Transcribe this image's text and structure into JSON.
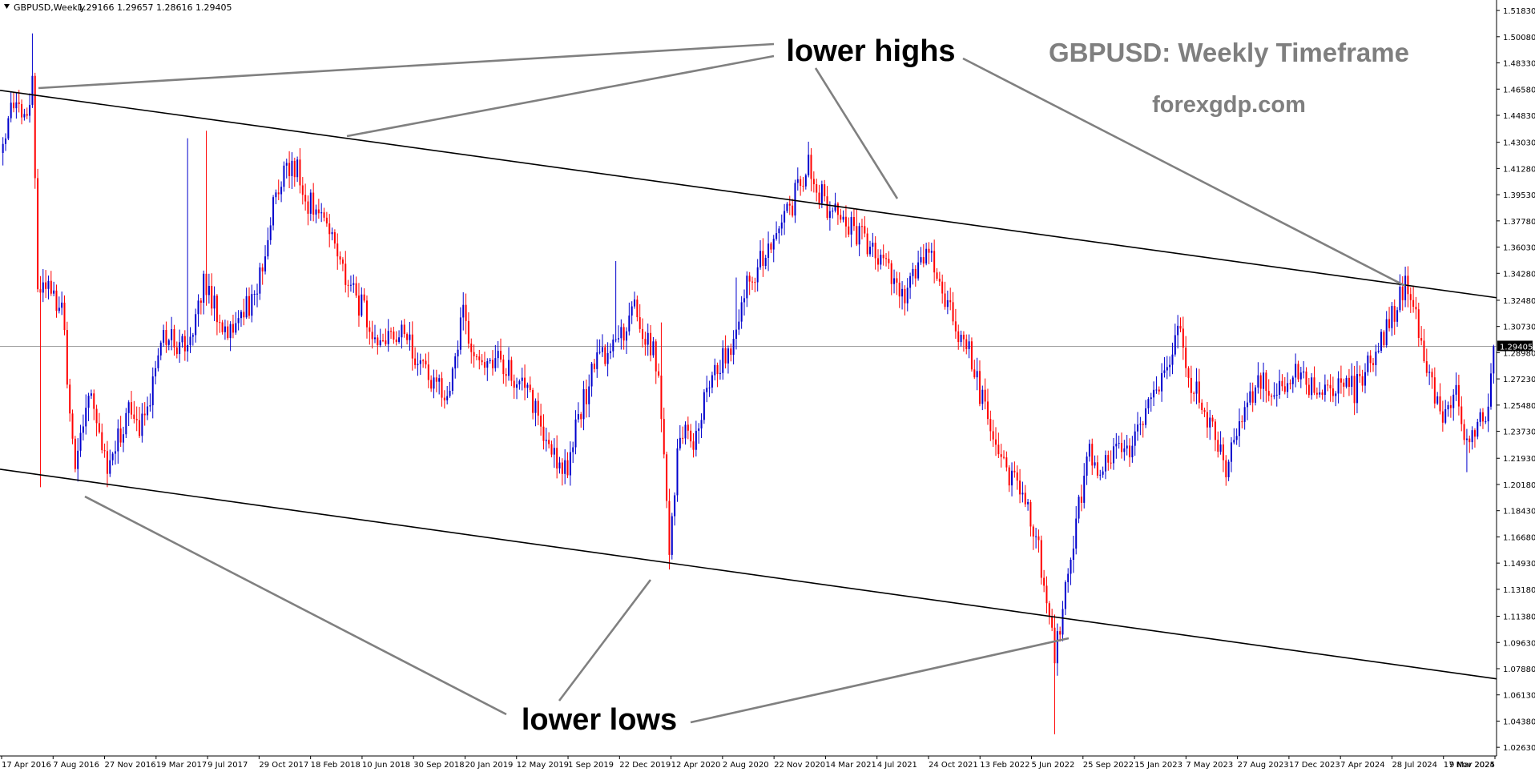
{
  "header": {
    "symbol": "GBPUSD,Weekly",
    "ohlc": "1.29166 1.29657 1.28616 1.29405"
  },
  "watermark": {
    "title": "GBPUSD: Weekly Timeframe",
    "site": "forexgdp.com",
    "color": "#7f7f7f"
  },
  "annotations": {
    "highs_label": "lower highs",
    "lows_label": "lower lows",
    "pointer_color": "#808080"
  },
  "colors": {
    "bull": "#0000cd",
    "bear": "#ff0000",
    "trendline": "#000000",
    "current_line": "#a0a0a0",
    "axis": "#000000"
  },
  "chart_data": {
    "type": "candlestick",
    "symbol": "GBPUSD",
    "timeframe": "Weekly",
    "current_price": "1.29405",
    "y_ticks": [
      "1.51830",
      "1.50080",
      "1.48330",
      "1.46580",
      "1.44830",
      "1.43030",
      "1.41280",
      "1.39530",
      "1.37780",
      "1.36030",
      "1.34280",
      "1.32480",
      "1.30730",
      "1.28980",
      "1.27230",
      "1.25480",
      "1.23730",
      "1.21930",
      "1.20180",
      "1.18430",
      "1.16680",
      "1.14930",
      "1.13180",
      "1.11380",
      "1.09630",
      "1.07880",
      "1.06130",
      "1.04380",
      "1.02630"
    ],
    "ylim": [
      1.0205,
      1.5253
    ],
    "x_ticks": [
      "17 Apr 2016",
      "7 Aug 2016",
      "27 Nov 2016",
      "19 Mar 2017",
      "9 Jul 2017",
      "29 Oct 2017",
      "18 Feb 2018",
      "10 Jun 2018",
      "30 Sep 2018",
      "20 Jan 2019",
      "12 May 2019",
      "1 Sep 2019",
      "22 Dec 2019",
      "12 Apr 2020",
      "2 Aug 2020",
      "22 Nov 2020",
      "14 Mar 2021",
      "4 Jul 2021",
      "24 Oct 2021",
      "13 Feb 2022",
      "5 Jun 2022",
      "25 Sep 2022",
      "15 Jan 2023",
      "7 May 2023",
      "27 Aug 2023",
      "17 Dec 2023",
      "7 Apr 2024",
      "28 Jul 2024",
      "17 Nov 2024",
      "9 Mar 2025"
    ],
    "anchors": [
      [
        0,
        1.43
      ],
      [
        3,
        1.465
      ],
      [
        8,
        1.445
      ],
      [
        11,
        1.472
      ],
      [
        13,
        1.34
      ],
      [
        17,
        1.33
      ],
      [
        22,
        1.315
      ],
      [
        27,
        1.22
      ],
      [
        33,
        1.27
      ],
      [
        39,
        1.205
      ],
      [
        46,
        1.25
      ],
      [
        53,
        1.24
      ],
      [
        60,
        1.3
      ],
      [
        69,
        1.29
      ],
      [
        75,
        1.34
      ],
      [
        84,
        1.3
      ],
      [
        95,
        1.33
      ],
      [
        101,
        1.39
      ],
      [
        108,
        1.42
      ],
      [
        114,
        1.39
      ],
      [
        121,
        1.38
      ],
      [
        128,
        1.34
      ],
      [
        134,
        1.32
      ],
      [
        142,
        1.295
      ],
      [
        148,
        1.305
      ],
      [
        154,
        1.29
      ],
      [
        160,
        1.27
      ],
      [
        166,
        1.26
      ],
      [
        172,
        1.315
      ],
      [
        178,
        1.28
      ],
      [
        185,
        1.285
      ],
      [
        192,
        1.27
      ],
      [
        198,
        1.255
      ],
      [
        204,
        1.23
      ],
      [
        210,
        1.21
      ],
      [
        216,
        1.25
      ],
      [
        222,
        1.29
      ],
      [
        229,
        1.29
      ],
      [
        235,
        1.32
      ],
      [
        241,
        1.3
      ],
      [
        245,
        1.28
      ],
      [
        249,
        1.16
      ],
      [
        253,
        1.24
      ],
      [
        259,
        1.23
      ],
      [
        265,
        1.28
      ],
      [
        271,
        1.29
      ],
      [
        277,
        1.33
      ],
      [
        283,
        1.35
      ],
      [
        289,
        1.37
      ],
      [
        295,
        1.39
      ],
      [
        301,
        1.415
      ],
      [
        307,
        1.39
      ],
      [
        313,
        1.38
      ],
      [
        319,
        1.37
      ],
      [
        325,
        1.36
      ],
      [
        331,
        1.345
      ],
      [
        337,
        1.325
      ],
      [
        343,
        1.36
      ],
      [
        349,
        1.345
      ],
      [
        355,
        1.31
      ],
      [
        361,
        1.29
      ],
      [
        367,
        1.25
      ],
      [
        373,
        1.22
      ],
      [
        379,
        1.2
      ],
      [
        384,
        1.18
      ],
      [
        389,
        1.14
      ],
      [
        393,
        1.09
      ],
      [
        397,
        1.13
      ],
      [
        401,
        1.18
      ],
      [
        406,
        1.22
      ],
      [
        411,
        1.21
      ],
      [
        416,
        1.23
      ],
      [
        421,
        1.22
      ],
      [
        426,
        1.245
      ],
      [
        431,
        1.265
      ],
      [
        436,
        1.285
      ],
      [
        439,
        1.31
      ],
      [
        443,
        1.27
      ],
      [
        448,
        1.26
      ],
      [
        453,
        1.23
      ],
      [
        457,
        1.215
      ],
      [
        462,
        1.24
      ],
      [
        467,
        1.265
      ],
      [
        472,
        1.27
      ],
      [
        478,
        1.265
      ],
      [
        483,
        1.275
      ],
      [
        488,
        1.27
      ],
      [
        494,
        1.26
      ],
      [
        499,
        1.27
      ],
      [
        505,
        1.265
      ],
      [
        510,
        1.28
      ],
      [
        515,
        1.3
      ],
      [
        520,
        1.315
      ],
      [
        524,
        1.338
      ],
      [
        528,
        1.315
      ],
      [
        533,
        1.27
      ],
      [
        538,
        1.25
      ],
      [
        543,
        1.26
      ],
      [
        547,
        1.225
      ],
      [
        551,
        1.24
      ],
      [
        555,
        1.255
      ],
      [
        557,
        1.294
      ]
    ],
    "spikes": [
      {
        "i": 11,
        "high": 1.503
      },
      {
        "i": 14,
        "low": 1.2
      },
      {
        "i": 39,
        "low": 1.2
      },
      {
        "i": 69,
        "high": 1.433
      },
      {
        "i": 76,
        "high": 1.438
      },
      {
        "i": 210,
        "low": 1.205
      },
      {
        "i": 229,
        "high": 1.351
      },
      {
        "i": 246,
        "high": 1.31
      },
      {
        "i": 249,
        "low": 1.145
      },
      {
        "i": 274,
        "high": 1.34
      },
      {
        "i": 302,
        "high": 1.425
      },
      {
        "i": 319,
        "high": 1.386
      },
      {
        "i": 393,
        "low": 1.035
      },
      {
        "i": 439,
        "high": 1.315
      },
      {
        "i": 483,
        "high": 1.286
      },
      {
        "i": 524,
        "high": 1.343
      },
      {
        "i": 547,
        "low": 1.21
      }
    ],
    "n_bars": 558,
    "trendlines": [
      {
        "name": "upper",
        "from": [
          "17 Apr 2016",
          1.465
        ],
        "to": [
          "9 Mar 2025",
          1.3265
        ]
      },
      {
        "name": "lower",
        "from": [
          "17 Apr 2016",
          1.212
        ],
        "to": [
          "9 Mar 2025",
          1.072
        ]
      }
    ]
  }
}
